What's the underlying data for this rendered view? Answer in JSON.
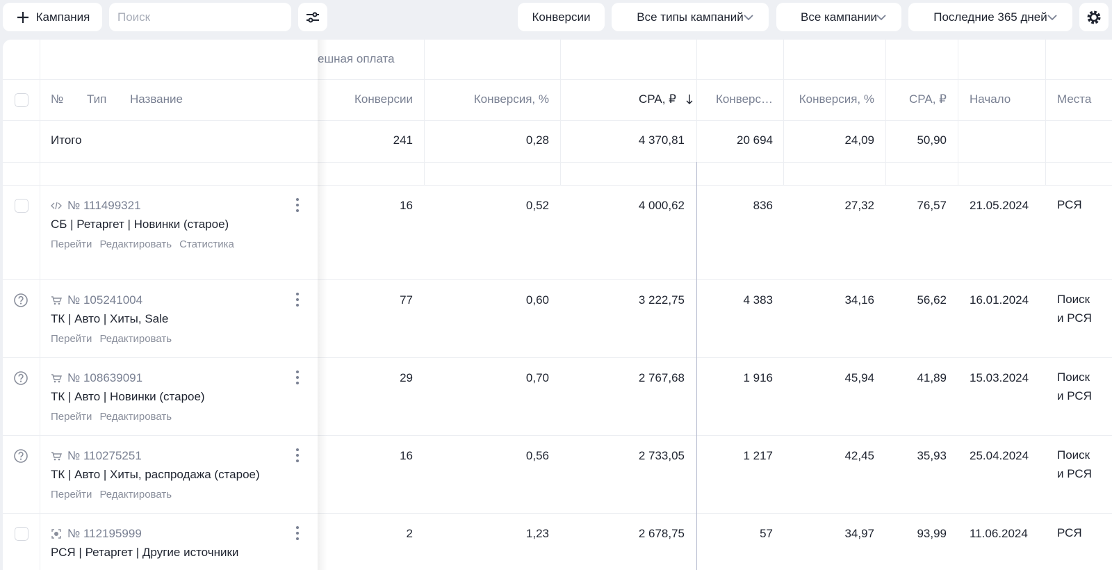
{
  "toolbar": {
    "add_button": "Кампания",
    "search_placeholder": "Поиск",
    "filters": [
      "Конверсии",
      "Все типы кампаний",
      "Все кампании",
      "Последние 365 дней"
    ]
  },
  "table": {
    "group_header": "ешная оплата",
    "columns": [
      "№",
      "Тип",
      "Название",
      "Конверсии",
      "Конверсия, %",
      "CPA, ₽",
      "Конверс…",
      "Конверсия, %",
      "CPA, ₽",
      "Начало",
      "Места"
    ],
    "total": {
      "label": "Итого",
      "values": [
        "241",
        "0,28",
        "4 370,81",
        "20 694",
        "24,09",
        "50,90"
      ]
    },
    "rows": [
      {
        "id": "№ 111499321",
        "name": "СБ | Ретаргет | Новинки (старое)",
        "links": [
          "Перейти",
          "Редактировать",
          "Статистика"
        ],
        "values": [
          "16",
          "0,52",
          "4 000,62",
          "836",
          "27,32",
          "76,57"
        ],
        "start": "21.05.2024",
        "places": "РСЯ"
      },
      {
        "id": "№ 105241004",
        "name": "ТК | Авто | Хиты, Sale",
        "links": [
          "Перейти",
          "Редактировать"
        ],
        "values": [
          "77",
          "0,60",
          "3 222,75",
          "4 383",
          "34,16",
          "56,62"
        ],
        "start": "16.01.2024",
        "places": "Поиск и РСЯ"
      },
      {
        "id": "№ 108639091",
        "name": "ТК | Авто | Новинки (старое)",
        "links": [
          "Перейти",
          "Редактировать"
        ],
        "values": [
          "29",
          "0,70",
          "2 767,68",
          "1 916",
          "45,94",
          "41,89"
        ],
        "start": "15.03.2024",
        "places": "Поиск и РСЯ"
      },
      {
        "id": "№ 110275251",
        "name": "ТК | Авто | Хиты, распродажа (старое)",
        "links": [
          "Перейти",
          "Редактировать"
        ],
        "values": [
          "16",
          "0,56",
          "2 733,05",
          "1 217",
          "42,45",
          "35,93"
        ],
        "start": "25.04.2024",
        "places": "Поиск и РСЯ"
      },
      {
        "id": "№ 112195999",
        "name": "РСЯ | Ретаргет | Другие источники",
        "links": [],
        "values": [
          "2",
          "1,23",
          "2 678,75",
          "57",
          "34,97",
          "93,99"
        ],
        "start": "11.06.2024",
        "places": "РСЯ"
      }
    ]
  }
}
